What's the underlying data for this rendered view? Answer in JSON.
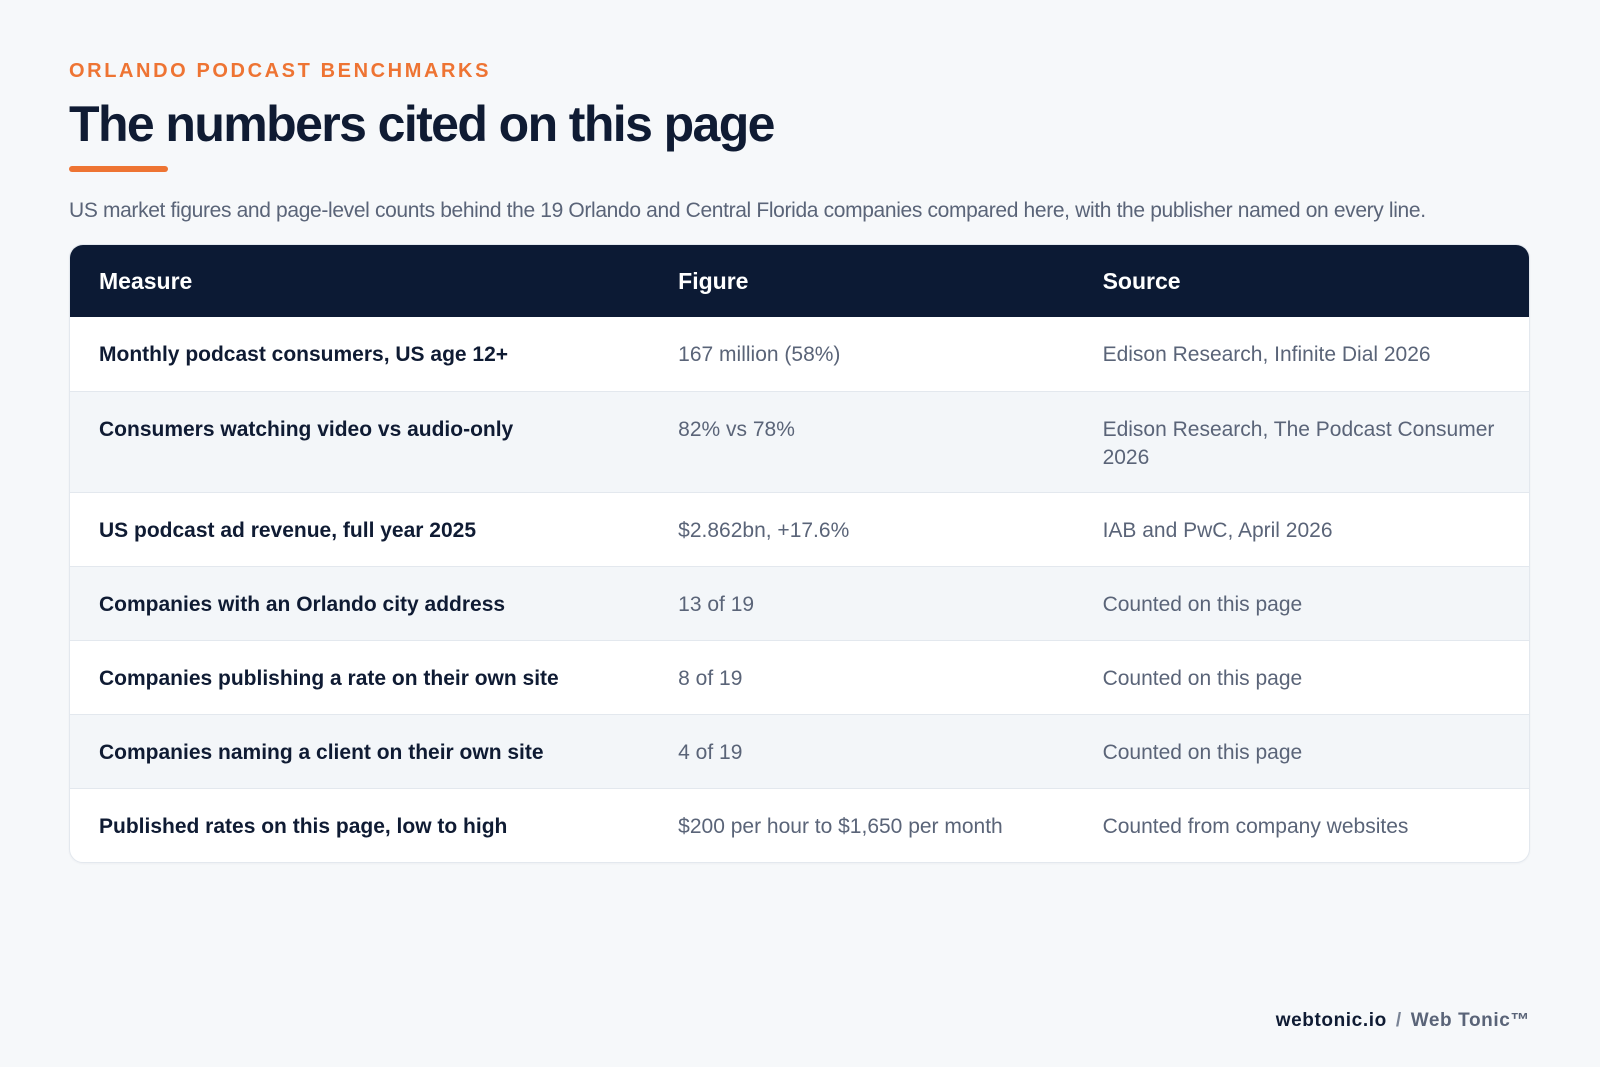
{
  "header": {
    "eyebrow": "ORLANDO PODCAST BENCHMARKS",
    "title": "The numbers cited on this page",
    "subtitle": "US market figures and page-level counts behind the 19 Orlando and Central Florida companies compared here, with the publisher named on every line."
  },
  "table": {
    "columns": [
      "Measure",
      "Figure",
      "Source"
    ],
    "rows": [
      {
        "measure": "Monthly podcast consumers, US age 12+",
        "figure": "167 million (58%)",
        "source": "Edison Research, Infinite Dial 2026"
      },
      {
        "measure": "Consumers watching video vs audio-only",
        "figure": "82% vs 78%",
        "source": "Edison Research, The Podcast Consumer 2026"
      },
      {
        "measure": "US podcast ad revenue, full year 2025",
        "figure": "$2.862bn, +17.6%",
        "source": "IAB and PwC, April 2026"
      },
      {
        "measure": "Companies with an Orlando city address",
        "figure": "13 of 19",
        "source": "Counted on this page"
      },
      {
        "measure": "Companies publishing a rate on their own site",
        "figure": "8 of 19",
        "source": "Counted on this page"
      },
      {
        "measure": "Companies naming a client on their own site",
        "figure": "4 of 19",
        "source": "Counted on this page"
      },
      {
        "measure": "Published rates on this page, low to high",
        "figure": "$200 per hour to $1,650 per month",
        "source": "Counted from company websites"
      }
    ]
  },
  "footer": {
    "domain": "webtonic.io",
    "separator": "/",
    "brand": "Web Tonic™"
  },
  "colors": {
    "accent": "#ee7433",
    "navy": "#0c1a34",
    "text": "#0f1b33",
    "muted": "#5a6478",
    "background": "#f6f8fa"
  }
}
